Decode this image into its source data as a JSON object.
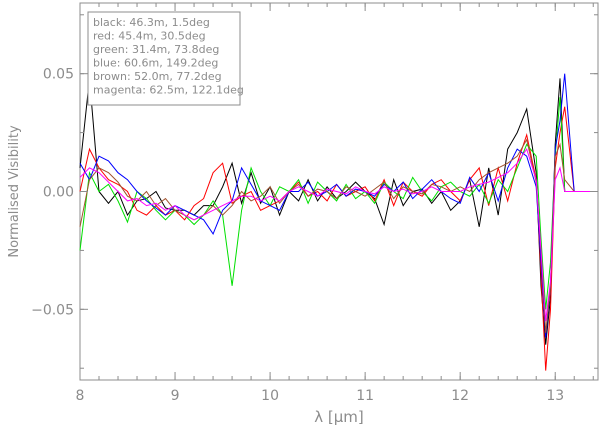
{
  "chart_data": {
    "type": "line",
    "title": "",
    "xlabel": "λ [μm]",
    "ylabel": "Normalised Visibility",
    "xlim": [
      8.0,
      13.45
    ],
    "ylim": [
      -0.08,
      0.08
    ],
    "x_ticks": [
      8,
      9,
      10,
      11,
      12,
      13
    ],
    "x_tick_labels": [
      "8",
      "9",
      "10",
      "11",
      "12",
      "13"
    ],
    "y_ticks": [
      -0.05,
      0.0,
      0.05
    ],
    "y_tick_labels": [
      "−0.05",
      "0.00",
      "0.05"
    ],
    "legend_position": "top-left",
    "grid": false,
    "x": [
      8.0,
      8.1,
      8.2,
      8.3,
      8.4,
      8.5,
      8.6,
      8.7,
      8.8,
      8.9,
      9.0,
      9.1,
      9.2,
      9.3,
      9.4,
      9.5,
      9.6,
      9.7,
      9.8,
      9.9,
      10.0,
      10.1,
      10.2,
      10.3,
      10.4,
      10.5,
      10.6,
      10.7,
      10.8,
      10.9,
      11.0,
      11.1,
      11.2,
      11.3,
      11.4,
      11.5,
      11.6,
      11.7,
      11.8,
      11.9,
      12.0,
      12.1,
      12.2,
      12.3,
      12.4,
      12.5,
      12.6,
      12.7,
      12.8,
      12.85,
      12.9,
      12.95,
      13.0,
      13.05,
      13.1,
      13.2,
      13.3,
      13.45
    ],
    "series": [
      {
        "name": "black: 46.3m, 1.5deg",
        "color": "#000000",
        "values": [
          0.01,
          0.048,
          0.0,
          -0.005,
          0.0,
          -0.01,
          -0.004,
          -0.003,
          0.0,
          -0.007,
          -0.008,
          -0.008,
          -0.01,
          -0.006,
          -0.006,
          0.002,
          0.012,
          -0.005,
          0.008,
          -0.005,
          0.002,
          -0.01,
          0.0,
          -0.004,
          0.005,
          -0.004,
          0.002,
          -0.003,
          0.0,
          0.004,
          0.0,
          -0.003,
          -0.014,
          0.005,
          -0.006,
          0.0,
          0.001,
          -0.005,
          0.0,
          -0.008,
          -0.004,
          0.005,
          -0.015,
          0.01,
          -0.01,
          0.018,
          0.025,
          0.035,
          0.008,
          -0.04,
          -0.065,
          -0.045,
          0.02,
          0.048,
          0.0,
          0.0,
          0.0,
          0.0
        ]
      },
      {
        "name": "red: 45.4m, 30.5deg",
        "color": "#ff0000",
        "values": [
          0.0,
          0.018,
          0.01,
          0.005,
          0.003,
          0.0,
          -0.008,
          -0.01,
          -0.006,
          -0.01,
          -0.008,
          -0.012,
          -0.006,
          -0.003,
          0.008,
          0.012,
          -0.005,
          -0.002,
          0.0,
          -0.008,
          -0.006,
          -0.004,
          0.0,
          0.004,
          -0.002,
          0.0,
          -0.004,
          0.003,
          -0.002,
          0.0,
          0.002,
          -0.004,
          0.005,
          -0.006,
          0.004,
          0.0,
          -0.002,
          0.003,
          0.005,
          0.0,
          -0.004,
          0.005,
          0.01,
          -0.006,
          0.01,
          -0.004,
          0.012,
          0.024,
          0.005,
          -0.035,
          -0.076,
          -0.05,
          0.01,
          0.025,
          0.036,
          0.0,
          0.0,
          0.0
        ]
      },
      {
        "name": "green: 31.4m, 73.8deg",
        "color": "#00e000",
        "values": [
          -0.025,
          0.008,
          0.0,
          0.003,
          -0.004,
          -0.013,
          0.0,
          -0.003,
          -0.008,
          -0.012,
          -0.008,
          -0.01,
          -0.014,
          -0.01,
          -0.004,
          -0.01,
          -0.04,
          -0.008,
          0.01,
          0.0,
          -0.006,
          0.002,
          0.0,
          0.005,
          -0.005,
          0.004,
          0.0,
          -0.004,
          0.003,
          -0.003,
          0.0,
          -0.005,
          0.004,
          0.0,
          -0.003,
          0.006,
          0.0,
          -0.004,
          0.002,
          0.004,
          0.0,
          -0.002,
          0.003,
          -0.005,
          0.005,
          0.0,
          0.01,
          0.02,
          0.015,
          -0.02,
          -0.05,
          -0.03,
          0.015,
          0.04,
          0.0,
          0.0,
          0.0,
          0.0
        ]
      },
      {
        "name": "blue: 60.6m, 149.2deg",
        "color": "#0000ff",
        "values": [
          0.012,
          0.005,
          0.015,
          0.013,
          0.008,
          0.005,
          0.0,
          -0.004,
          -0.007,
          -0.01,
          -0.006,
          -0.008,
          -0.01,
          -0.012,
          -0.018,
          -0.008,
          -0.004,
          0.01,
          0.003,
          -0.004,
          -0.006,
          -0.008,
          0.0,
          0.0,
          0.004,
          -0.002,
          0.0,
          0.003,
          -0.002,
          0.001,
          0.0,
          -0.002,
          0.003,
          0.0,
          0.004,
          -0.003,
          0.001,
          0.005,
          0.0,
          -0.003,
          -0.005,
          0.006,
          0.0,
          0.008,
          -0.004,
          0.01,
          0.018,
          0.015,
          0.002,
          -0.03,
          -0.062,
          -0.04,
          0.018,
          0.03,
          0.05,
          0.0,
          0.0,
          0.0
        ]
      },
      {
        "name": "brown: 52.0m, 77.2deg",
        "color": "#a0522d",
        "values": [
          -0.015,
          0.005,
          0.01,
          0.008,
          0.004,
          -0.002,
          -0.004,
          0.0,
          -0.006,
          -0.003,
          -0.008,
          -0.01,
          -0.012,
          -0.01,
          -0.006,
          -0.01,
          -0.006,
          0.0,
          -0.004,
          -0.002,
          0.002,
          -0.005,
          0.0,
          0.003,
          -0.002,
          0.001,
          0.0,
          -0.003,
          0.002,
          0.0,
          -0.002,
          0.001,
          0.004,
          -0.003,
          0.002,
          0.0,
          -0.001,
          0.003,
          0.002,
          0.0,
          0.002,
          0.0,
          0.005,
          0.008,
          0.01,
          0.012,
          0.015,
          0.022,
          0.004,
          -0.025,
          -0.06,
          -0.04,
          0.015,
          0.02,
          0.005,
          0.0,
          0.0,
          0.0
        ]
      },
      {
        "name": "magenta: 62.5m, 122.1deg",
        "color": "#ff00ff",
        "values": [
          0.006,
          0.01,
          0.008,
          0.004,
          0.0,
          -0.004,
          -0.003,
          -0.006,
          -0.005,
          -0.008,
          -0.006,
          -0.01,
          -0.012,
          -0.01,
          -0.008,
          -0.006,
          -0.004,
          -0.002,
          -0.002,
          -0.004,
          -0.002,
          -0.004,
          0.0,
          0.002,
          0.0,
          -0.002,
          0.001,
          0.0,
          -0.001,
          0.002,
          0.0,
          -0.001,
          0.002,
          0.0,
          0.001,
          -0.001,
          0.0,
          0.002,
          0.0,
          0.0,
          0.0,
          0.002,
          0.003,
          0.004,
          0.006,
          0.008,
          0.012,
          0.018,
          0.005,
          -0.025,
          -0.055,
          -0.038,
          0.005,
          0.01,
          0.0,
          0.0,
          0.0,
          0.0
        ]
      }
    ]
  }
}
